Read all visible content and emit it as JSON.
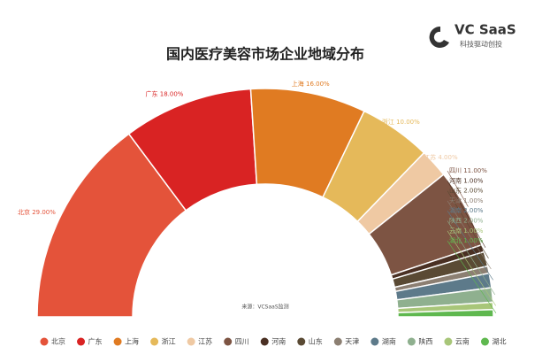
{
  "brand": {
    "name": "VC SaaS",
    "tagline": "科技驱动创投"
  },
  "chart_data": {
    "type": "pie",
    "shape": "half-donut",
    "title": "国内医疗美容市场企业地域分布",
    "source": "来源：VCSaaS监测",
    "categories": [
      "北京",
      "广东",
      "上海",
      "浙江",
      "江苏",
      "四川",
      "河南",
      "山东",
      "天津",
      "湖南",
      "陕西",
      "云南",
      "湖北"
    ],
    "values": [
      29,
      18,
      16,
      10,
      4,
      11,
      1,
      2,
      1,
      2,
      2,
      1,
      1
    ],
    "value_labels": [
      "北京 29.00%",
      "广东 18.00%",
      "上海 16.00%",
      "浙江 10.00%",
      "江苏 4.00%",
      "四川 11.00%",
      "河南 1.00%",
      "山东 2.00%",
      "天津 1.00%",
      "湖南 2.00%",
      "陕西 2.00%",
      "云南 1.00%",
      "湖北 1.00%"
    ],
    "colors": [
      "#e4533a",
      "#d92323",
      "#e07b22",
      "#e5b95a",
      "#efc9a3",
      "#7d5443",
      "#4a3023",
      "#5a4a34",
      "#8c7f72",
      "#5d7a8a",
      "#8fb08f",
      "#a8c679",
      "#5fb84f"
    ],
    "legend": "bottom"
  }
}
